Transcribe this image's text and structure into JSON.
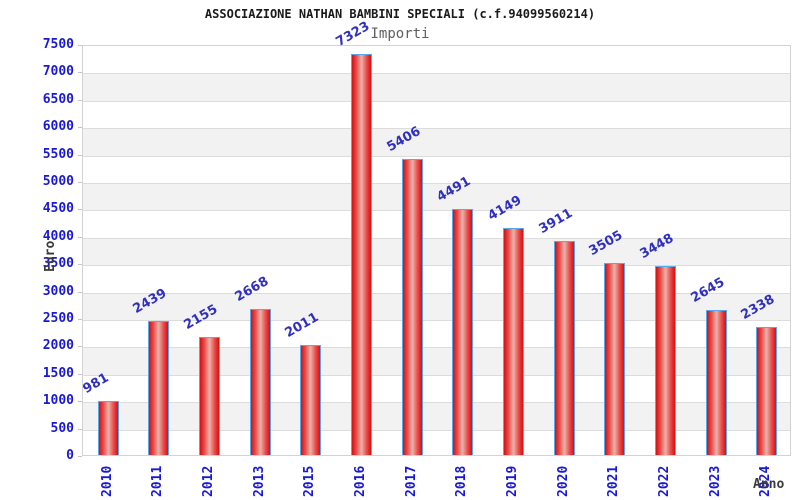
{
  "title": "ASSOCIAZIONE NATHAN BAMBINI SPECIALI (c.f.94099560214)",
  "chart_data": {
    "type": "bar",
    "title": "Importi",
    "xlabel": "Anno",
    "ylabel": "Euro",
    "categories": [
      "2010",
      "2011",
      "2012",
      "2013",
      "2015",
      "2016",
      "2017",
      "2018",
      "2019",
      "2020",
      "2021",
      "2022",
      "2023",
      "2024"
    ],
    "values": [
      981,
      2439,
      2155,
      2668,
      2011,
      7323,
      5406,
      4491,
      4149,
      3911,
      3505,
      3448,
      2645,
      2338
    ],
    "ylim": [
      0,
      7500
    ],
    "ytick_step": 500,
    "legend": "none",
    "grid": "horizontal gridlines with alternating shaded bands",
    "colors": {
      "bar_edge": "#58a8ea",
      "bar_red": "#d61010",
      "bar_center_highlight": "#eab2aa",
      "tick_label_blue": "#1818d6",
      "value_label_blue": "#3030c0",
      "band_gray": "#f2f2f2",
      "gridline_gray": "#dcdcdc",
      "plot_border": "#d3d3d3",
      "title_color": "#1a1a1a",
      "subtitle_color": "#5f5f5f",
      "axis_title_color": "#3a3a3a"
    }
  }
}
